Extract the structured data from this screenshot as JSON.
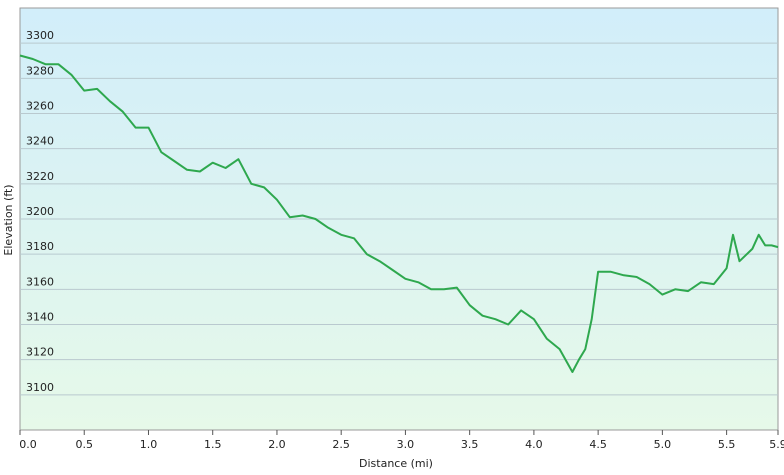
{
  "chart_data": {
    "type": "line",
    "x_label": "Distance  (mi)",
    "y_label": "Elevation (ft)",
    "x": [
      0,
      0.1,
      0.2,
      0.3,
      0.4,
      0.5,
      0.6,
      0.7,
      0.8,
      0.9,
      1.0,
      1.1,
      1.2,
      1.3,
      1.4,
      1.5,
      1.6,
      1.7,
      1.8,
      1.9,
      2.0,
      2.1,
      2.2,
      2.3,
      2.4,
      2.5,
      2.6,
      2.7,
      2.8,
      2.9,
      3.0,
      3.1,
      3.2,
      3.3,
      3.4,
      3.5,
      3.6,
      3.7,
      3.8,
      3.9,
      4.0,
      4.1,
      4.2,
      4.3,
      4.35,
      4.4,
      4.45,
      4.5,
      4.6,
      4.7,
      4.8,
      4.9,
      5.0,
      5.1,
      5.2,
      5.3,
      5.4,
      5.5,
      5.55,
      5.6,
      5.7,
      5.75,
      5.8,
      5.85,
      5.9
    ],
    "series": [
      {
        "name": "Elevation",
        "color": "#2ea84e",
        "values": [
          3293,
          3291,
          3288,
          3288,
          3282,
          3273,
          3274,
          3267,
          3261,
          3252,
          3252,
          3238,
          3233,
          3228,
          3227,
          3232,
          3229,
          3234,
          3220,
          3218,
          3211,
          3201,
          3202,
          3200,
          3195,
          3191,
          3189,
          3180,
          3176,
          3171,
          3166,
          3164,
          3160,
          3160,
          3161,
          3151,
          3145,
          3143,
          3140,
          3148,
          3143,
          3132,
          3126,
          3113,
          3120,
          3126,
          3143,
          3170,
          3170,
          3168,
          3167,
          3163,
          3157,
          3160,
          3159,
          3164,
          3163,
          3172,
          3191,
          3176,
          3183,
          3191,
          3185,
          3185,
          3184
        ]
      }
    ],
    "xlim": [
      0,
      5.9
    ],
    "xticks": [
      {
        "value": 0,
        "label": "0.0"
      },
      0.5,
      {
        "value": 1,
        "label": "1.0"
      },
      1.5,
      {
        "value": 2,
        "label": "2.0"
      },
      2.5,
      {
        "value": 3,
        "label": "3.0"
      },
      3.5,
      {
        "value": 4,
        "label": "4.0"
      },
      4.5,
      {
        "value": 5,
        "label": "5.0"
      },
      5.5,
      5.9
    ],
    "ylim": [
      3080,
      3320
    ],
    "yticks": [
      3100,
      3120,
      3140,
      3160,
      3180,
      3200,
      3220,
      3240,
      3260,
      3280,
      3300
    ],
    "grid": true
  }
}
